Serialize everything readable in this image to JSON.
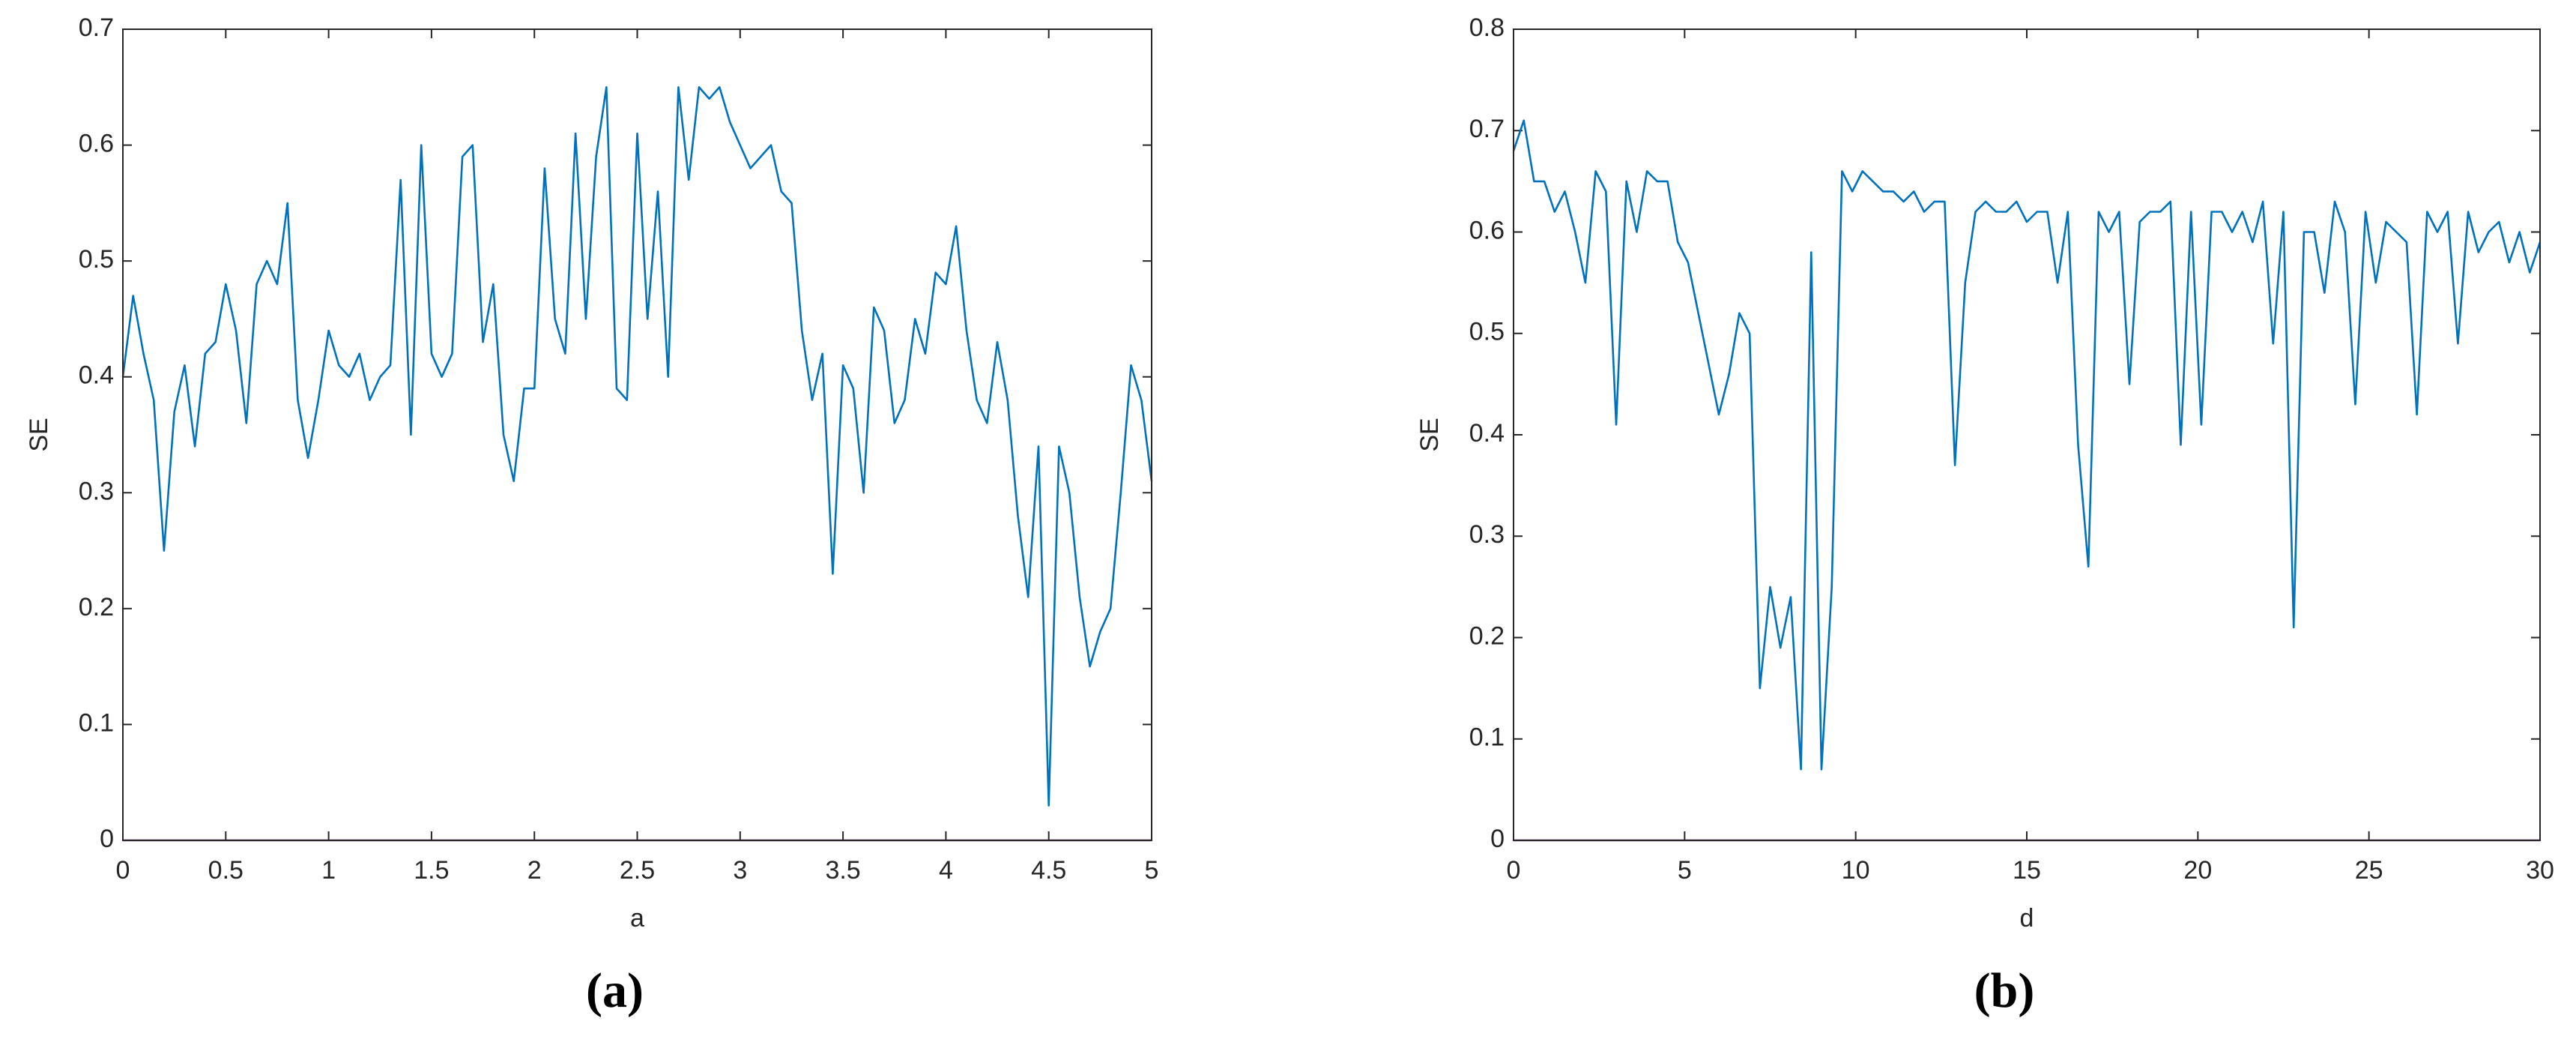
{
  "chart_data": [
    {
      "type": "line",
      "caption": "(a)",
      "xlabel": "a",
      "ylabel": "SE",
      "xlim": [
        0,
        5
      ],
      "xticks": [
        0,
        0.5,
        1,
        1.5,
        2,
        2.5,
        3,
        3.5,
        4,
        4.5,
        5
      ],
      "ylim": [
        0,
        0.7
      ],
      "yticks": [
        0,
        0.1,
        0.2,
        0.3,
        0.4,
        0.5,
        0.6,
        0.7
      ],
      "x": [
        0,
        0.05,
        0.1,
        0.15,
        0.2,
        0.25,
        0.3,
        0.35,
        0.4,
        0.45,
        0.5,
        0.55,
        0.6,
        0.65,
        0.7,
        0.75,
        0.8,
        0.85,
        0.9,
        0.95,
        1,
        1.05,
        1.1,
        1.15,
        1.2,
        1.25,
        1.3,
        1.35,
        1.4,
        1.45,
        1.5,
        1.55,
        1.6,
        1.65,
        1.7,
        1.75,
        1.8,
        1.85,
        1.9,
        1.95,
        2,
        2.05,
        2.1,
        2.15,
        2.2,
        2.25,
        2.3,
        2.35,
        2.4,
        2.45,
        2.5,
        2.55,
        2.6,
        2.65,
        2.7,
        2.75,
        2.8,
        2.85,
        2.9,
        2.95,
        3,
        3.05,
        3.1,
        3.15,
        3.2,
        3.25,
        3.3,
        3.35,
        3.4,
        3.45,
        3.5,
        3.55,
        3.6,
        3.65,
        3.7,
        3.75,
        3.8,
        3.85,
        3.9,
        3.95,
        4,
        4.05,
        4.1,
        4.15,
        4.2,
        4.25,
        4.3,
        4.35,
        4.4,
        4.45,
        4.5,
        4.55,
        4.6,
        4.65,
        4.7,
        4.75,
        4.8,
        4.85,
        4.9,
        4.95,
        5
      ],
      "series": [
        {
          "color": "#0072bd",
          "values": [
            0.4,
            0.47,
            0.42,
            0.38,
            0.25,
            0.37,
            0.41,
            0.34,
            0.42,
            0.43,
            0.48,
            0.44,
            0.36,
            0.48,
            0.5,
            0.48,
            0.55,
            0.38,
            0.33,
            0.38,
            0.44,
            0.41,
            0.4,
            0.42,
            0.38,
            0.4,
            0.41,
            0.57,
            0.35,
            0.6,
            0.42,
            0.4,
            0.42,
            0.59,
            0.6,
            0.43,
            0.48,
            0.35,
            0.31,
            0.39,
            0.39,
            0.58,
            0.45,
            0.42,
            0.61,
            0.45,
            0.59,
            0.65,
            0.39,
            0.38,
            0.61,
            0.45,
            0.56,
            0.4,
            0.65,
            0.57,
            0.65,
            0.64,
            0.65,
            0.62,
            0.6,
            0.58,
            0.59,
            0.6,
            0.56,
            0.55,
            0.44,
            0.38,
            0.42,
            0.23,
            0.41,
            0.39,
            0.3,
            0.46,
            0.44,
            0.36,
            0.38,
            0.45,
            0.42,
            0.49,
            0.48,
            0.53,
            0.44,
            0.38,
            0.36,
            0.43,
            0.38,
            0.28,
            0.21,
            0.34,
            0.03,
            0.34,
            0.3,
            0.21,
            0.15,
            0.18,
            0.2,
            0.3,
            0.41,
            0.38,
            0.31
          ]
        },
        {
          "color": "#7e2f8e",
          "x": [
            0,
            5
          ],
          "values": [
            0,
            0
          ]
        }
      ]
    },
    {
      "type": "line",
      "caption": "(b)",
      "xlabel": "d",
      "ylabel": "SE",
      "xlim": [
        0,
        30
      ],
      "xticks": [
        0,
        5,
        10,
        15,
        20,
        25,
        30
      ],
      "ylim": [
        0,
        0.8
      ],
      "yticks": [
        0,
        0.1,
        0.2,
        0.3,
        0.4,
        0.5,
        0.6,
        0.7,
        0.8
      ],
      "x": [
        0,
        0.3,
        0.6,
        0.9,
        1.2,
        1.5,
        1.8,
        2.1,
        2.4,
        2.7,
        3,
        3.3,
        3.6,
        3.9,
        4.2,
        4.5,
        4.8,
        5.1,
        5.4,
        5.7,
        6,
        6.3,
        6.6,
        6.9,
        7.2,
        7.5,
        7.8,
        8.1,
        8.4,
        8.7,
        9,
        9.3,
        9.6,
        9.9,
        10.2,
        10.5,
        10.8,
        11.1,
        11.4,
        11.7,
        12,
        12.3,
        12.6,
        12.9,
        13.2,
        13.5,
        13.8,
        14.1,
        14.4,
        14.7,
        15,
        15.3,
        15.6,
        15.9,
        16.2,
        16.5,
        16.8,
        17.1,
        17.4,
        17.7,
        18,
        18.3,
        18.6,
        18.9,
        19.2,
        19.5,
        19.8,
        20.1,
        20.4,
        20.7,
        21,
        21.3,
        21.6,
        21.9,
        22.2,
        22.5,
        22.8,
        23.1,
        23.4,
        23.7,
        24,
        24.3,
        24.6,
        24.9,
        25.2,
        25.5,
        25.8,
        26.1,
        26.4,
        26.7,
        27,
        27.3,
        27.6,
        27.9,
        28.2,
        28.5,
        28.8,
        29.1,
        29.4,
        29.7,
        30
      ],
      "series": [
        {
          "color": "#0072bd",
          "values": [
            0.68,
            0.71,
            0.65,
            0.65,
            0.62,
            0.64,
            0.6,
            0.55,
            0.66,
            0.64,
            0.41,
            0.65,
            0.6,
            0.66,
            0.65,
            0.65,
            0.59,
            0.57,
            0.52,
            0.47,
            0.42,
            0.46,
            0.52,
            0.5,
            0.15,
            0.25,
            0.19,
            0.24,
            0.07,
            0.58,
            0.07,
            0.25,
            0.66,
            0.64,
            0.66,
            0.65,
            0.64,
            0.64,
            0.63,
            0.64,
            0.62,
            0.63,
            0.63,
            0.37,
            0.55,
            0.62,
            0.63,
            0.62,
            0.62,
            0.63,
            0.61,
            0.62,
            0.62,
            0.55,
            0.62,
            0.39,
            0.27,
            0.62,
            0.6,
            0.62,
            0.45,
            0.61,
            0.62,
            0.62,
            0.63,
            0.39,
            0.62,
            0.41,
            0.62,
            0.62,
            0.6,
            0.62,
            0.59,
            0.63,
            0.49,
            0.62,
            0.21,
            0.6,
            0.6,
            0.54,
            0.63,
            0.6,
            0.43,
            0.62,
            0.55,
            0.61,
            0.6,
            0.59,
            0.42,
            0.62,
            0.6,
            0.62,
            0.49,
            0.62,
            0.58,
            0.6,
            0.61,
            0.57,
            0.6,
            0.56,
            0.59
          ]
        },
        {
          "color": "#7e2f8e",
          "x": [
            0,
            30
          ],
          "values": [
            0,
            0
          ]
        }
      ]
    }
  ]
}
